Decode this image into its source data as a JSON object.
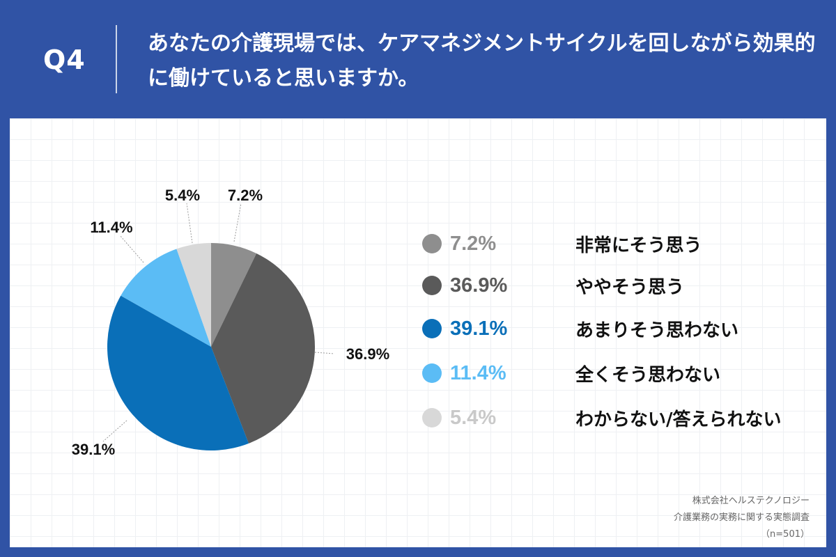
{
  "header": {
    "q_label": "Q4",
    "question": "あなたの介護現場では、ケアマネジメントサイクルを回しながら効果的に働けていると思いますか。"
  },
  "chart_data": {
    "type": "pie",
    "slices": [
      {
        "label": "非常にそう思う",
        "value": 7.2,
        "display": "7.2%",
        "color": "#8e8e8e",
        "pct_color": "#8e8e8e"
      },
      {
        "label": "ややそう思う",
        "value": 36.9,
        "display": "36.9%",
        "color": "#5a5a5a",
        "pct_color": "#5a5a5a"
      },
      {
        "label": "あまりそう思わない",
        "value": 39.1,
        "display": "39.1%",
        "color": "#0a6fb8",
        "pct_color": "#0a6fb8"
      },
      {
        "label": "全くそう思わない",
        "value": 11.4,
        "display": "11.4%",
        "color": "#5bbcf5",
        "pct_color": "#5bbcf5"
      },
      {
        "label": "わからない/答えられない",
        "value": 5.4,
        "display": "5.4%",
        "color": "#d8d8d8",
        "pct_color": "#c9c9c9"
      }
    ],
    "start": "top",
    "direction": "clockwise",
    "legend_position": "right"
  },
  "source": {
    "line1": "株式会社ヘルステクノロジー",
    "line2": "介護業務の実務に関する実態調査",
    "line3": "（n=501）"
  }
}
